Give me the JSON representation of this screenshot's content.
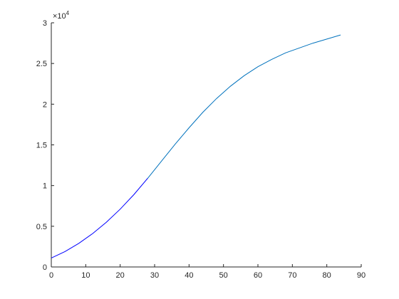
{
  "chart_data": {
    "type": "line",
    "xlim": [
      0,
      90
    ],
    "xticks": [
      0,
      10,
      20,
      30,
      40,
      50,
      60,
      70,
      80,
      90
    ],
    "ylim": [
      0,
      30000
    ],
    "yticks": [
      0,
      {
        "value": 5000,
        "label": "0.5"
      },
      {
        "value": 10000,
        "label": "1"
      },
      {
        "value": 15000,
        "label": "1.5"
      },
      {
        "value": 20000,
        "label": "2"
      },
      {
        "value": 25000,
        "label": "2.5"
      },
      {
        "value": 30000,
        "label": "3"
      }
    ],
    "y_multiplier": {
      "base": "×10",
      "exponent": "4"
    },
    "grid": false,
    "series": [
      {
        "color": "#0000ff",
        "x": [
          0,
          4,
          8,
          12,
          16,
          20,
          24,
          28
        ],
        "values": [
          1100,
          1900,
          2900,
          4100,
          5500,
          7100,
          8900,
          10900
        ]
      },
      {
        "color": "#0072bd",
        "x": [
          28,
          32,
          36,
          40,
          44,
          48,
          52,
          56,
          60,
          64,
          68,
          72,
          76,
          80,
          84
        ],
        "values": [
          10900,
          13000,
          15100,
          17100,
          19000,
          20700,
          22200,
          23500,
          24600,
          25500,
          26300,
          26900,
          27500,
          28000,
          28500
        ]
      }
    ]
  }
}
